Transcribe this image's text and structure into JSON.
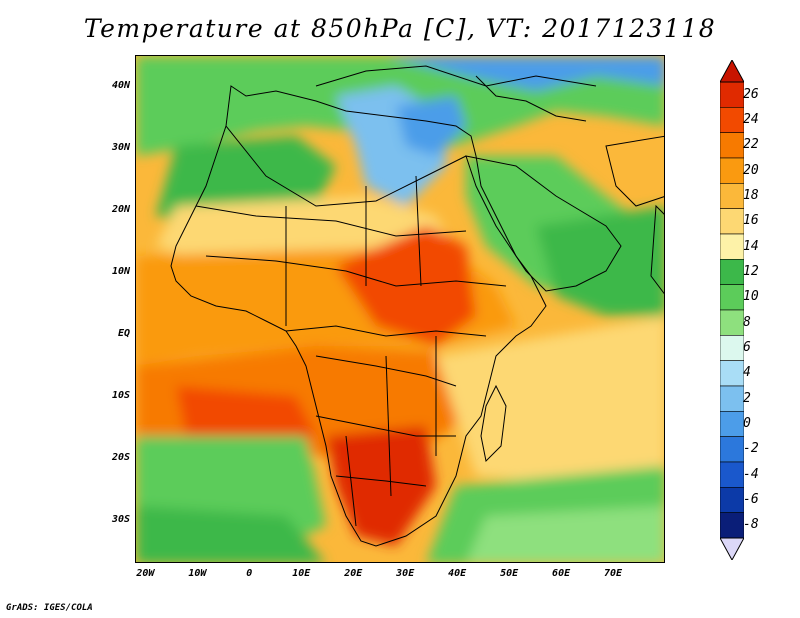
{
  "title": "Temperature at 850hPa [C], VT: 2017123118",
  "credit": "GrADS: IGES/COLA",
  "map": {
    "lon_range": [
      -22,
      80
    ],
    "lat_range": [
      -37,
      45
    ],
    "lat_ticks": [
      {
        "value": 40,
        "label": "40N"
      },
      {
        "value": 30,
        "label": "30N"
      },
      {
        "value": 20,
        "label": "20N"
      },
      {
        "value": 10,
        "label": "10N"
      },
      {
        "value": 0,
        "label": "EQ"
      },
      {
        "value": -10,
        "label": "10S"
      },
      {
        "value": -20,
        "label": "20S"
      },
      {
        "value": -30,
        "label": "30S"
      }
    ],
    "lon_ticks": [
      {
        "value": -20,
        "label": "20W"
      },
      {
        "value": -10,
        "label": "10W"
      },
      {
        "value": 0,
        "label": "0"
      },
      {
        "value": 10,
        "label": "10E"
      },
      {
        "value": 20,
        "label": "20E"
      },
      {
        "value": 30,
        "label": "30E"
      },
      {
        "value": 40,
        "label": "40E"
      },
      {
        "value": 50,
        "label": "50E"
      },
      {
        "value": 60,
        "label": "60E"
      },
      {
        "value": 70,
        "label": "70E"
      }
    ]
  },
  "colorbar": {
    "levels": [
      "26",
      "24",
      "22",
      "20",
      "18",
      "16",
      "14",
      "12",
      "10",
      "8",
      "6",
      "4",
      "2",
      "0",
      "-2",
      "-4",
      "-6",
      "-8"
    ],
    "colors_top_to_bottom": [
      "#e02a00",
      "#f24a00",
      "#f77a00",
      "#fa9a10",
      "#fbb83a",
      "#fdd873",
      "#fdf2a8",
      "#3cb84a",
      "#5ccc5a",
      "#8ee07e",
      "#dcf8ee",
      "#a9ddf6",
      "#7cc0ef",
      "#4c9de9",
      "#2c78dc",
      "#1a58cc",
      "#0c3aa8",
      "#0a1e78"
    ],
    "top_arrow_color": "#c81400",
    "bottom_arrow_color": "#dcd8f8"
  }
}
